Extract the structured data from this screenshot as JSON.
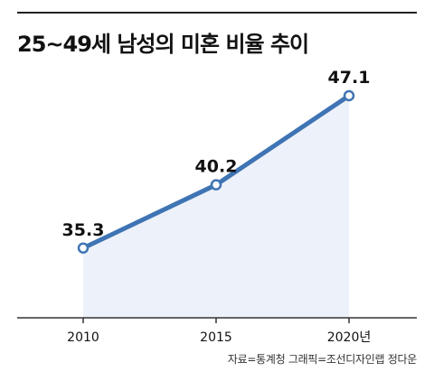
{
  "title": "25~49세 남성의 미혼 비율 추이",
  "source": "자료=통계청  그래픽=조선디자인랩 정다운",
  "chart_data": {
    "type": "area",
    "title": "25~49세 남성의 미혼 비율 추이",
    "xlabel": "",
    "ylabel": "",
    "x": [
      "2010",
      "2015",
      "2020"
    ],
    "tick_labels": [
      "2010",
      "2015",
      "2020년"
    ],
    "series": [
      {
        "values": [
          35.3,
          40.2,
          47.1
        ],
        "labels": [
          "35.3",
          "40.2",
          "47.1"
        ]
      }
    ],
    "ylim": [
      29.9,
      47.1
    ],
    "grid": false,
    "colors": {
      "line": "#3f74b4",
      "fill": "#edf1f9",
      "axis": "#333333"
    }
  }
}
